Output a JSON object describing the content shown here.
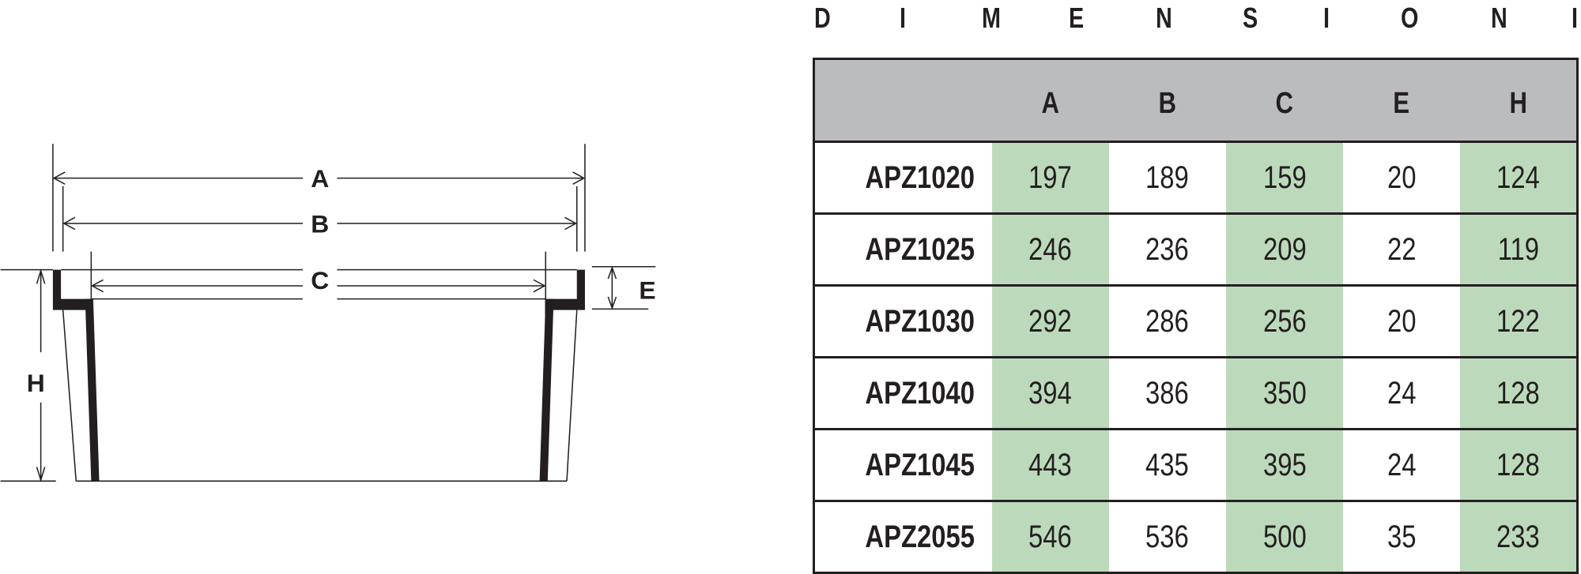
{
  "title_letters": [
    "D",
    "I",
    "M",
    "E",
    "N",
    "S",
    "I",
    "O",
    "N",
    "I"
  ],
  "diagram": {
    "labels": {
      "a": "A",
      "b": "B",
      "c": "C",
      "e": "E",
      "h": "H"
    }
  },
  "table": {
    "columns": [
      "",
      "A",
      "B",
      "C",
      "E",
      "H"
    ],
    "rows": [
      {
        "model": "APZ1020",
        "values": [
          "197",
          "189",
          "159",
          "20",
          "124"
        ]
      },
      {
        "model": "APZ1025",
        "values": [
          "246",
          "236",
          "209",
          "22",
          "119"
        ]
      },
      {
        "model": "APZ1030",
        "values": [
          "292",
          "286",
          "256",
          "20",
          "122"
        ]
      },
      {
        "model": "APZ1040",
        "values": [
          "394",
          "386",
          "350",
          "24",
          "128"
        ]
      },
      {
        "model": "APZ1045",
        "values": [
          "443",
          "435",
          "395",
          "24",
          "128"
        ]
      },
      {
        "model": "APZ2055",
        "values": [
          "546",
          "536",
          "500",
          "35",
          "233"
        ]
      }
    ]
  },
  "colors": {
    "header_bg": "#bbbcc0",
    "highlight_column": "#bcdabb",
    "ink": "#231f20"
  }
}
